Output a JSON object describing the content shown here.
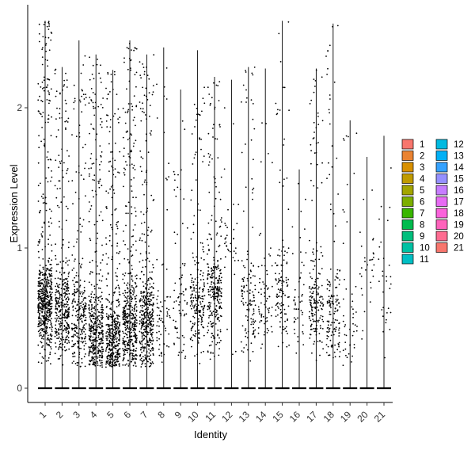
{
  "chart_data": {
    "type": "violin-strip",
    "ylabel": "Expression Level",
    "xlabel": "Identity",
    "ylim": [
      -0.12,
      2.7
    ],
    "yticks": [
      "0",
      "1",
      "2"
    ],
    "ytick_values": [
      0,
      1,
      2
    ],
    "grid": false,
    "legend_position": "right",
    "categories": [
      "1",
      "2",
      "3",
      "4",
      "5",
      "6",
      "7",
      "8",
      "9",
      "10",
      "11",
      "12",
      "13",
      "14",
      "15",
      "16",
      "17",
      "18",
      "19",
      "20",
      "21"
    ],
    "colors": [
      "#F8766D",
      "#EA8331",
      "#D89000",
      "#C09B00",
      "#A3A500",
      "#7CAE00",
      "#39B600",
      "#00BB4E",
      "#00BF7D",
      "#00C1A3",
      "#00BFC4",
      "#00BAE0",
      "#00B0F6",
      "#35A2FF",
      "#9590FF",
      "#C77CFF",
      "#E76BF3",
      "#FA62DB",
      "#FF62BC",
      "#FF6C91",
      "#F8766D"
    ],
    "max_values": [
      2.62,
      2.29,
      2.48,
      2.38,
      2.27,
      2.48,
      2.38,
      2.43,
      2.13,
      2.41,
      2.22,
      2.2,
      2.29,
      2.28,
      2.62,
      1.56,
      2.28,
      2.6,
      1.91,
      1.65,
      1.8
    ],
    "cluster_density": [
      1.0,
      0.62,
      0.45,
      0.72,
      0.72,
      0.78,
      0.7,
      0.12,
      0.12,
      0.35,
      0.5,
      0.06,
      0.22,
      0.12,
      0.2,
      0.08,
      0.3,
      0.24,
      0.08,
      0.05,
      0.05
    ],
    "cluster_center": [
      0.6,
      0.55,
      0.5,
      0.38,
      0.33,
      0.45,
      0.45,
      0.45,
      0.55,
      0.6,
      0.65,
      1.0,
      0.6,
      0.6,
      0.7,
      0.6,
      0.6,
      0.55,
      0.4,
      0.9,
      0.6
    ],
    "zero_value": 0
  }
}
